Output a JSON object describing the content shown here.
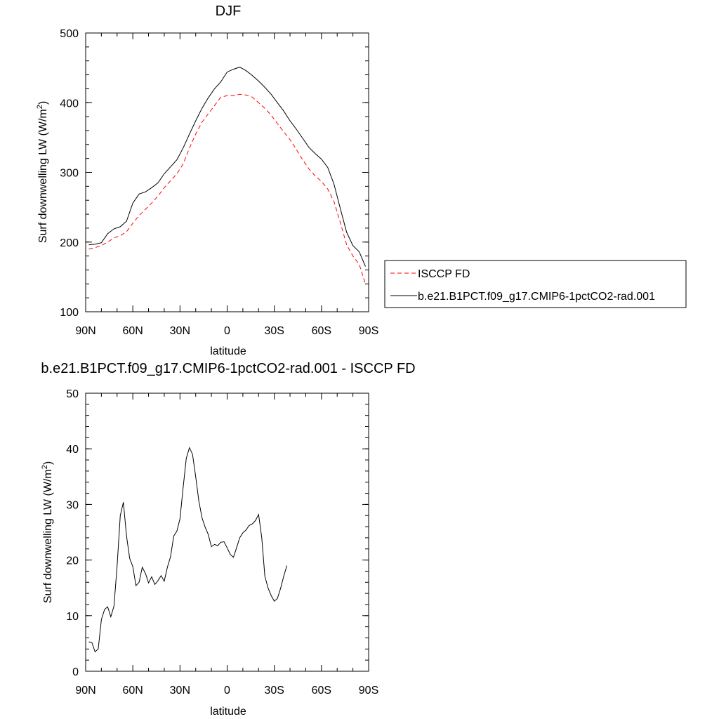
{
  "chart_data": [
    {
      "type": "line",
      "title": "DJF",
      "xlabel": "latitude",
      "ylabel": "Surf downwelling LW (W/m",
      "ylabel_sup": "2",
      "ylabel_close": ")",
      "xlim": [
        90,
        -90
      ],
      "ylim": [
        100,
        500
      ],
      "xticks": [
        {
          "value": 90,
          "label": "90N"
        },
        {
          "value": 60,
          "label": "60N"
        },
        {
          "value": 30,
          "label": "30N"
        },
        {
          "value": 0,
          "label": "0"
        },
        {
          "value": -30,
          "label": "30S"
        },
        {
          "value": -60,
          "label": "60S"
        },
        {
          "value": -90,
          "label": "90S"
        }
      ],
      "yticks": [
        100,
        200,
        300,
        400,
        500
      ],
      "legend": "right",
      "series": [
        {
          "name": "ISCCP FD",
          "color": "#ff0000",
          "dash": true,
          "points": [
            [
              88,
              190
            ],
            [
              84,
              192
            ],
            [
              80,
              195
            ],
            [
              76,
              200
            ],
            [
              72,
              206
            ],
            [
              68,
              209
            ],
            [
              64,
              215
            ],
            [
              60,
              227
            ],
            [
              56,
              238
            ],
            [
              52,
              247
            ],
            [
              48,
              256
            ],
            [
              44,
              266
            ],
            [
              40,
              278
            ],
            [
              36,
              288
            ],
            [
              32,
              298
            ],
            [
              28,
              312
            ],
            [
              24,
              335
            ],
            [
              20,
              355
            ],
            [
              16,
              372
            ],
            [
              12,
              384
            ],
            [
              8,
              396
            ],
            [
              4,
              408
            ],
            [
              0,
              410
            ],
            [
              -4,
              410
            ],
            [
              -8,
              412
            ],
            [
              -12,
              411
            ],
            [
              -16,
              408
            ],
            [
              -20,
              400
            ],
            [
              -24,
              392
            ],
            [
              -28,
              382
            ],
            [
              -32,
              370
            ],
            [
              -36,
              358
            ],
            [
              -40,
              347
            ],
            [
              -44,
              333
            ],
            [
              -48,
              318
            ],
            [
              -52,
              305
            ],
            [
              -56,
              295
            ],
            [
              -60,
              287
            ],
            [
              -64,
              276
            ],
            [
              -68,
              258
            ],
            [
              -72,
              228
            ],
            [
              -76,
              196
            ],
            [
              -80,
              180
            ],
            [
              -84,
              168
            ],
            [
              -88,
              140
            ]
          ]
        },
        {
          "name": "b.e21.B1PCT.f09_g17.CMIP6-1pctCO2-rad.001",
          "color": "#000000",
          "dash": false,
          "points": [
            [
              88,
              196
            ],
            [
              84,
              197
            ],
            [
              80,
              199
            ],
            [
              76,
              212
            ],
            [
              72,
              219
            ],
            [
              68,
              222
            ],
            [
              64,
              230
            ],
            [
              60,
              256
            ],
            [
              56,
              269
            ],
            [
              52,
              272
            ],
            [
              48,
              278
            ],
            [
              44,
              285
            ],
            [
              40,
              298
            ],
            [
              36,
              308
            ],
            [
              32,
              318
            ],
            [
              28,
              335
            ],
            [
              24,
              355
            ],
            [
              20,
              374
            ],
            [
              16,
              392
            ],
            [
              12,
              407
            ],
            [
              8,
              420
            ],
            [
              4,
              430
            ],
            [
              0,
              444
            ],
            [
              -4,
              448
            ],
            [
              -8,
              451
            ],
            [
              -12,
              446
            ],
            [
              -16,
              439
            ],
            [
              -20,
              431
            ],
            [
              -24,
              422
            ],
            [
              -28,
              412
            ],
            [
              -32,
              400
            ],
            [
              -36,
              388
            ],
            [
              -40,
              374
            ],
            [
              -44,
              362
            ],
            [
              -48,
              349
            ],
            [
              -52,
              336
            ],
            [
              -56,
              327
            ],
            [
              -60,
              319
            ],
            [
              -64,
              307
            ],
            [
              -68,
              283
            ],
            [
              -72,
              248
            ],
            [
              -76,
              214
            ],
            [
              -80,
              195
            ],
            [
              -84,
              186
            ],
            [
              -88,
              165
            ]
          ]
        }
      ]
    },
    {
      "type": "line",
      "title": "b.e21.B1PCT.f09_g17.CMIP6-1pctCO2-rad.001 - ISCCP FD",
      "xlabel": "latitude",
      "ylabel": "Surf downwelling LW (W/m",
      "ylabel_sup": "2",
      "ylabel_close": ")",
      "xlim": [
        90,
        -90
      ],
      "ylim": [
        0,
        50
      ],
      "xticks": [
        {
          "value": 90,
          "label": "90N"
        },
        {
          "value": 60,
          "label": "60N"
        },
        {
          "value": 30,
          "label": "30N"
        },
        {
          "value": 0,
          "label": "0"
        },
        {
          "value": -30,
          "label": "30S"
        },
        {
          "value": -60,
          "label": "60S"
        },
        {
          "value": -90,
          "label": "90S"
        }
      ],
      "yticks": [
        0,
        10,
        20,
        30,
        40,
        50
      ],
      "series": [
        {
          "color": "#000000",
          "dash": false,
          "points": [
            [
              88,
              5.3
            ],
            [
              86,
              5.1
            ],
            [
              84,
              3.5
            ],
            [
              82,
              4.0
            ],
            [
              80,
              9.3
            ],
            [
              78,
              11.1
            ],
            [
              76,
              11.6
            ],
            [
              74,
              9.8
            ],
            [
              72,
              11.7
            ],
            [
              70,
              19.0
            ],
            [
              68,
              28.0
            ],
            [
              66,
              30.4
            ],
            [
              64,
              24.3
            ],
            [
              62,
              20.3
            ],
            [
              60,
              18.8
            ],
            [
              58,
              15.4
            ],
            [
              56,
              16.0
            ],
            [
              54,
              18.7
            ],
            [
              52,
              17.6
            ],
            [
              50,
              15.9
            ],
            [
              48,
              17.0
            ],
            [
              46,
              15.6
            ],
            [
              44,
              16.3
            ],
            [
              42,
              17.2
            ],
            [
              40,
              16.2
            ],
            [
              38,
              18.7
            ],
            [
              36,
              20.6
            ],
            [
              34,
              24.3
            ],
            [
              32,
              25.2
            ],
            [
              30,
              27.4
            ],
            [
              28,
              33.0
            ],
            [
              26,
              38.3
            ],
            [
              24,
              40.2
            ],
            [
              22,
              39.0
            ],
            [
              20,
              35.0
            ],
            [
              18,
              30.6
            ],
            [
              16,
              27.6
            ],
            [
              14,
              25.9
            ],
            [
              12,
              24.6
            ],
            [
              10,
              22.4
            ],
            [
              8,
              22.8
            ],
            [
              6,
              22.6
            ],
            [
              4,
              23.2
            ],
            [
              2,
              23.3
            ],
            [
              0,
              22.2
            ],
            [
              -2,
              21.0
            ],
            [
              -4,
              20.5
            ],
            [
              -6,
              22.2
            ],
            [
              -8,
              24.0
            ],
            [
              -10,
              24.9
            ],
            [
              -12,
              25.4
            ],
            [
              -14,
              26.2
            ],
            [
              -16,
              26.5
            ],
            [
              -18,
              27.1
            ],
            [
              -20,
              28.2
            ],
            [
              -22,
              24.0
            ],
            [
              -24,
              17.1
            ],
            [
              -26,
              15.0
            ],
            [
              -28,
              13.6
            ],
            [
              -30,
              12.6
            ],
            [
              -32,
              13.1
            ],
            [
              -34,
              14.9
            ],
            [
              -36,
              17.1
            ],
            [
              -38,
              19.0
            ]
          ]
        }
      ]
    }
  ]
}
